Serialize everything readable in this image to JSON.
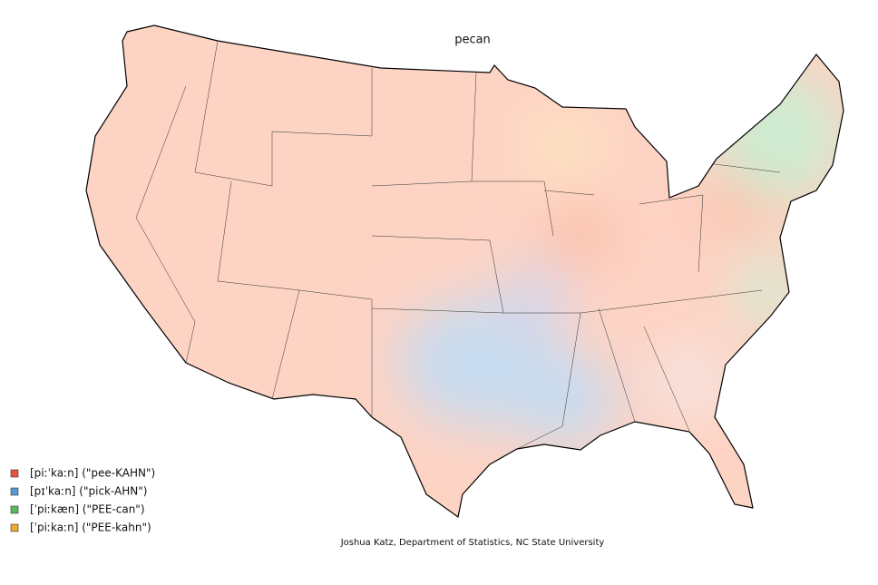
{
  "title": "pecan",
  "legend": [
    {
      "label": "[piːˈkaːn] (\"pee-KAHN\")",
      "color": "#e8553f"
    },
    {
      "label": "[pɪˈkaːn] (\"pick-AHN\")",
      "color": "#5b9bd5"
    },
    {
      "label": "[ˈpiːkæn] (\"PEE-can\")",
      "color": "#5cb85c"
    },
    {
      "label": "[ˈpiːkaːn] (\"PEE-kahn\")",
      "color": "#f0a830"
    }
  ],
  "credit": "Joshua Katz, Department of Statistics, NC State University"
}
